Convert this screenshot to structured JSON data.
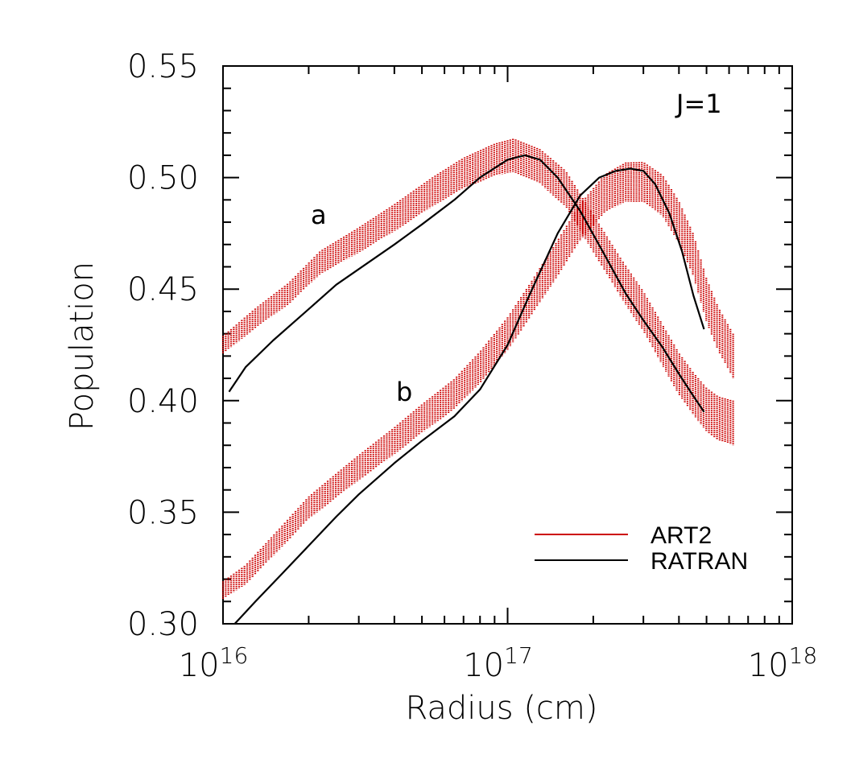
{
  "chart_data": {
    "type": "scatter",
    "title": "",
    "xlabel": "Radius (cm)",
    "ylabel": "Population",
    "x_scale": "log",
    "xlim": [
      1e+16,
      1e+18
    ],
    "ylim": [
      0.3,
      0.55
    ],
    "x_ticks": [
      {
        "base": "10",
        "exp": "16",
        "value": 1e+16
      },
      {
        "base": "10",
        "exp": "17",
        "value": 1e+17
      },
      {
        "base": "10",
        "exp": "18",
        "value": 1e+18
      }
    ],
    "y_ticks": [
      "0.30",
      "0.35",
      "0.40",
      "0.45",
      "0.50",
      "0.55"
    ],
    "grid": false,
    "legend": {
      "placement": "bottom-right"
    },
    "annotations": [
      "a",
      "b",
      "J=1"
    ],
    "series": [
      {
        "name": "ART2",
        "style": "scatter",
        "color": "#cc0000",
        "curves": [
          {
            "label": "a",
            "x": [
              1e+16,
              1.3e+16,
              1.7e+16,
              2.2e+16,
              3e+16,
              4e+16,
              5.5e+16,
              7e+16,
              9e+16,
              1.05e+17,
              1.3e+17,
              1.6e+17,
              2e+17,
              2.5e+17,
              3e+17,
              3.5e+17,
              4e+17,
              4.5e+17,
              5e+17,
              5.5e+17,
              6.2e+17
            ],
            "y": [
              0.425,
              0.437,
              0.448,
              0.462,
              0.472,
              0.482,
              0.494,
              0.502,
              0.508,
              0.51,
              0.505,
              0.495,
              0.475,
              0.455,
              0.44,
              0.425,
              0.412,
              0.403,
              0.396,
              0.392,
              0.39
            ]
          },
          {
            "label": "b",
            "x": [
              1e+16,
              1.2e+16,
              1.5e+16,
              2e+16,
              2.5e+16,
              3e+16,
              4e+16,
              5e+16,
              6.5e+16,
              8e+16,
              1e+17,
              1.2e+17,
              1.5e+17,
              1.8e+17,
              2.2e+17,
              2.6e+17,
              3e+17,
              3.5e+17,
              4e+17,
              4.5e+17,
              5e+17,
              5.5e+17,
              6.2e+17
            ],
            "y": [
              0.315,
              0.322,
              0.335,
              0.352,
              0.362,
              0.37,
              0.382,
              0.392,
              0.403,
              0.415,
              0.43,
              0.445,
              0.464,
              0.48,
              0.493,
              0.498,
              0.498,
              0.492,
              0.48,
              0.465,
              0.445,
              0.432,
              0.42
            ]
          }
        ]
      },
      {
        "name": "RATRAN",
        "style": "line",
        "color": "#000000",
        "curves": [
          {
            "label": "a",
            "x": [
              1.05e+16,
              1.2e+16,
              1.5e+16,
              2e+16,
              2.5e+16,
              3e+16,
              4e+16,
              5e+16,
              6.5e+16,
              8e+16,
              1e+17,
              1.15e+17,
              1.3e+17,
              1.5e+17,
              1.8e+17,
              2.2e+17,
              2.6e+17,
              3e+17,
              3.5e+17,
              4e+17,
              4.5e+17,
              4.9e+17
            ],
            "y": [
              0.404,
              0.415,
              0.427,
              0.441,
              0.452,
              0.459,
              0.47,
              0.479,
              0.49,
              0.5,
              0.508,
              0.51,
              0.508,
              0.5,
              0.485,
              0.465,
              0.448,
              0.436,
              0.424,
              0.412,
              0.402,
              0.395
            ]
          },
          {
            "label": "b",
            "x": [
              1.1e+16,
              1.3e+16,
              1.6e+16,
              2e+16,
              2.5e+16,
              3e+16,
              4e+16,
              5e+16,
              6.5e+16,
              8e+16,
              1e+17,
              1.2e+17,
              1.5e+17,
              1.8e+17,
              2.1e+17,
              2.4e+17,
              2.7e+17,
              3e+17,
              3.3e+17,
              3.7e+17,
              4.1e+17,
              4.5e+17,
              4.9e+17
            ],
            "y": [
              0.3,
              0.31,
              0.322,
              0.335,
              0.348,
              0.358,
              0.372,
              0.382,
              0.393,
              0.405,
              0.425,
              0.448,
              0.475,
              0.492,
              0.5,
              0.503,
              0.504,
              0.503,
              0.497,
              0.484,
              0.467,
              0.447,
              0.432
            ]
          }
        ]
      }
    ]
  }
}
